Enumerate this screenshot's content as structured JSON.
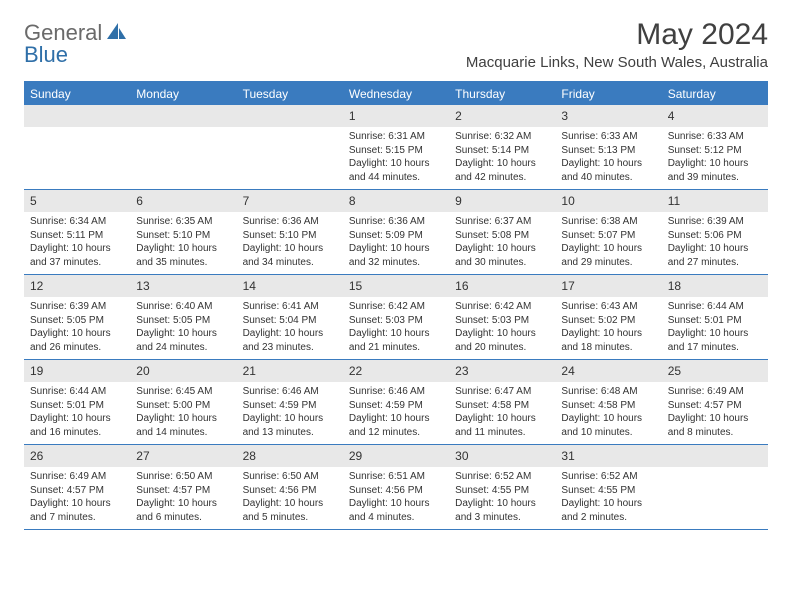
{
  "brand": {
    "part1": "General",
    "part2": "Blue"
  },
  "title": "May 2024",
  "location": "Macquarie Links, New South Wales, Australia",
  "colors": {
    "header_bg": "#3a7bbf",
    "header_text": "#ffffff",
    "daynum_bg": "#e8e8e8",
    "border": "#3a7bbf",
    "brand_gray": "#6a6a6a",
    "brand_blue": "#2f6fa8"
  },
  "dow": [
    "Sunday",
    "Monday",
    "Tuesday",
    "Wednesday",
    "Thursday",
    "Friday",
    "Saturday"
  ],
  "weeks": [
    [
      {
        "n": "",
        "sr": "",
        "ss": "",
        "dl": ""
      },
      {
        "n": "",
        "sr": "",
        "ss": "",
        "dl": ""
      },
      {
        "n": "",
        "sr": "",
        "ss": "",
        "dl": ""
      },
      {
        "n": "1",
        "sr": "Sunrise: 6:31 AM",
        "ss": "Sunset: 5:15 PM",
        "dl": "Daylight: 10 hours and 44 minutes."
      },
      {
        "n": "2",
        "sr": "Sunrise: 6:32 AM",
        "ss": "Sunset: 5:14 PM",
        "dl": "Daylight: 10 hours and 42 minutes."
      },
      {
        "n": "3",
        "sr": "Sunrise: 6:33 AM",
        "ss": "Sunset: 5:13 PM",
        "dl": "Daylight: 10 hours and 40 minutes."
      },
      {
        "n": "4",
        "sr": "Sunrise: 6:33 AM",
        "ss": "Sunset: 5:12 PM",
        "dl": "Daylight: 10 hours and 39 minutes."
      }
    ],
    [
      {
        "n": "5",
        "sr": "Sunrise: 6:34 AM",
        "ss": "Sunset: 5:11 PM",
        "dl": "Daylight: 10 hours and 37 minutes."
      },
      {
        "n": "6",
        "sr": "Sunrise: 6:35 AM",
        "ss": "Sunset: 5:10 PM",
        "dl": "Daylight: 10 hours and 35 minutes."
      },
      {
        "n": "7",
        "sr": "Sunrise: 6:36 AM",
        "ss": "Sunset: 5:10 PM",
        "dl": "Daylight: 10 hours and 34 minutes."
      },
      {
        "n": "8",
        "sr": "Sunrise: 6:36 AM",
        "ss": "Sunset: 5:09 PM",
        "dl": "Daylight: 10 hours and 32 minutes."
      },
      {
        "n": "9",
        "sr": "Sunrise: 6:37 AM",
        "ss": "Sunset: 5:08 PM",
        "dl": "Daylight: 10 hours and 30 minutes."
      },
      {
        "n": "10",
        "sr": "Sunrise: 6:38 AM",
        "ss": "Sunset: 5:07 PM",
        "dl": "Daylight: 10 hours and 29 minutes."
      },
      {
        "n": "11",
        "sr": "Sunrise: 6:39 AM",
        "ss": "Sunset: 5:06 PM",
        "dl": "Daylight: 10 hours and 27 minutes."
      }
    ],
    [
      {
        "n": "12",
        "sr": "Sunrise: 6:39 AM",
        "ss": "Sunset: 5:05 PM",
        "dl": "Daylight: 10 hours and 26 minutes."
      },
      {
        "n": "13",
        "sr": "Sunrise: 6:40 AM",
        "ss": "Sunset: 5:05 PM",
        "dl": "Daylight: 10 hours and 24 minutes."
      },
      {
        "n": "14",
        "sr": "Sunrise: 6:41 AM",
        "ss": "Sunset: 5:04 PM",
        "dl": "Daylight: 10 hours and 23 minutes."
      },
      {
        "n": "15",
        "sr": "Sunrise: 6:42 AM",
        "ss": "Sunset: 5:03 PM",
        "dl": "Daylight: 10 hours and 21 minutes."
      },
      {
        "n": "16",
        "sr": "Sunrise: 6:42 AM",
        "ss": "Sunset: 5:03 PM",
        "dl": "Daylight: 10 hours and 20 minutes."
      },
      {
        "n": "17",
        "sr": "Sunrise: 6:43 AM",
        "ss": "Sunset: 5:02 PM",
        "dl": "Daylight: 10 hours and 18 minutes."
      },
      {
        "n": "18",
        "sr": "Sunrise: 6:44 AM",
        "ss": "Sunset: 5:01 PM",
        "dl": "Daylight: 10 hours and 17 minutes."
      }
    ],
    [
      {
        "n": "19",
        "sr": "Sunrise: 6:44 AM",
        "ss": "Sunset: 5:01 PM",
        "dl": "Daylight: 10 hours and 16 minutes."
      },
      {
        "n": "20",
        "sr": "Sunrise: 6:45 AM",
        "ss": "Sunset: 5:00 PM",
        "dl": "Daylight: 10 hours and 14 minutes."
      },
      {
        "n": "21",
        "sr": "Sunrise: 6:46 AM",
        "ss": "Sunset: 4:59 PM",
        "dl": "Daylight: 10 hours and 13 minutes."
      },
      {
        "n": "22",
        "sr": "Sunrise: 6:46 AM",
        "ss": "Sunset: 4:59 PM",
        "dl": "Daylight: 10 hours and 12 minutes."
      },
      {
        "n": "23",
        "sr": "Sunrise: 6:47 AM",
        "ss": "Sunset: 4:58 PM",
        "dl": "Daylight: 10 hours and 11 minutes."
      },
      {
        "n": "24",
        "sr": "Sunrise: 6:48 AM",
        "ss": "Sunset: 4:58 PM",
        "dl": "Daylight: 10 hours and 10 minutes."
      },
      {
        "n": "25",
        "sr": "Sunrise: 6:49 AM",
        "ss": "Sunset: 4:57 PM",
        "dl": "Daylight: 10 hours and 8 minutes."
      }
    ],
    [
      {
        "n": "26",
        "sr": "Sunrise: 6:49 AM",
        "ss": "Sunset: 4:57 PM",
        "dl": "Daylight: 10 hours and 7 minutes."
      },
      {
        "n": "27",
        "sr": "Sunrise: 6:50 AM",
        "ss": "Sunset: 4:57 PM",
        "dl": "Daylight: 10 hours and 6 minutes."
      },
      {
        "n": "28",
        "sr": "Sunrise: 6:50 AM",
        "ss": "Sunset: 4:56 PM",
        "dl": "Daylight: 10 hours and 5 minutes."
      },
      {
        "n": "29",
        "sr": "Sunrise: 6:51 AM",
        "ss": "Sunset: 4:56 PM",
        "dl": "Daylight: 10 hours and 4 minutes."
      },
      {
        "n": "30",
        "sr": "Sunrise: 6:52 AM",
        "ss": "Sunset: 4:55 PM",
        "dl": "Daylight: 10 hours and 3 minutes."
      },
      {
        "n": "31",
        "sr": "Sunrise: 6:52 AM",
        "ss": "Sunset: 4:55 PM",
        "dl": "Daylight: 10 hours and 2 minutes."
      },
      {
        "n": "",
        "sr": "",
        "ss": "",
        "dl": ""
      }
    ]
  ]
}
